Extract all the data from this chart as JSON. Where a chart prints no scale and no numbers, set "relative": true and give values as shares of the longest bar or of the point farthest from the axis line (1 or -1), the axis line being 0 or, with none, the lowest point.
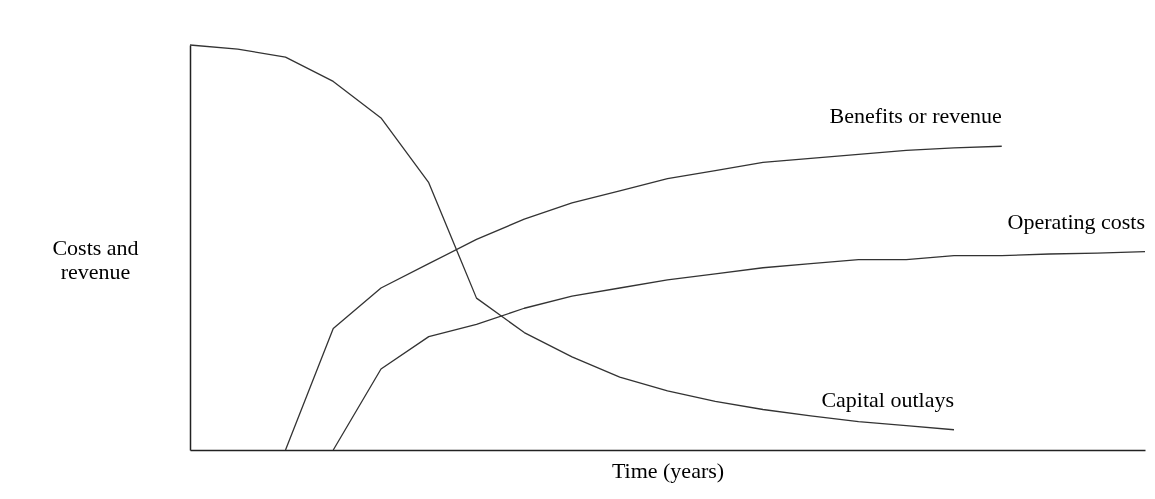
{
  "chart_data": {
    "type": "line",
    "relative": true,
    "xlabel": "Time (years)",
    "ylabel": "Costs and\nrevenue",
    "categories": [
      null,
      null,
      null,
      null,
      null,
      null,
      null,
      null,
      null,
      null,
      null,
      null,
      null,
      null,
      null,
      null,
      null,
      null,
      null,
      null,
      null
    ],
    "series": [
      {
        "name": "Benefits or revenue",
        "color": "#333333",
        "values": [
          null,
          null,
          0,
          0.3,
          0.4,
          0.46,
          0.52,
          0.57,
          0.61,
          0.64,
          0.67,
          0.69,
          0.71,
          0.72,
          0.73,
          0.74,
          0.746,
          0.75,
          null,
          null,
          null
        ]
      },
      {
        "name": "Operating costs",
        "color": "#333333",
        "values": [
          null,
          null,
          null,
          0,
          0.2,
          0.28,
          0.31,
          0.35,
          0.38,
          0.4,
          0.42,
          0.435,
          0.45,
          0.46,
          0.47,
          0.47,
          0.48,
          0.48,
          0.484,
          0.486,
          0.49
        ]
      },
      {
        "name": "Capital outlays",
        "color": "#333333",
        "values": [
          1,
          0.99,
          0.97,
          0.91,
          0.82,
          0.66,
          0.375,
          0.29,
          0.23,
          0.18,
          0.146,
          0.12,
          0.1,
          0.084,
          0.07,
          0.06,
          0.05,
          null,
          null,
          null,
          null
        ]
      }
    ],
    "legend": false,
    "grid": false,
    "marker": "none",
    "line_style": "solid"
  }
}
